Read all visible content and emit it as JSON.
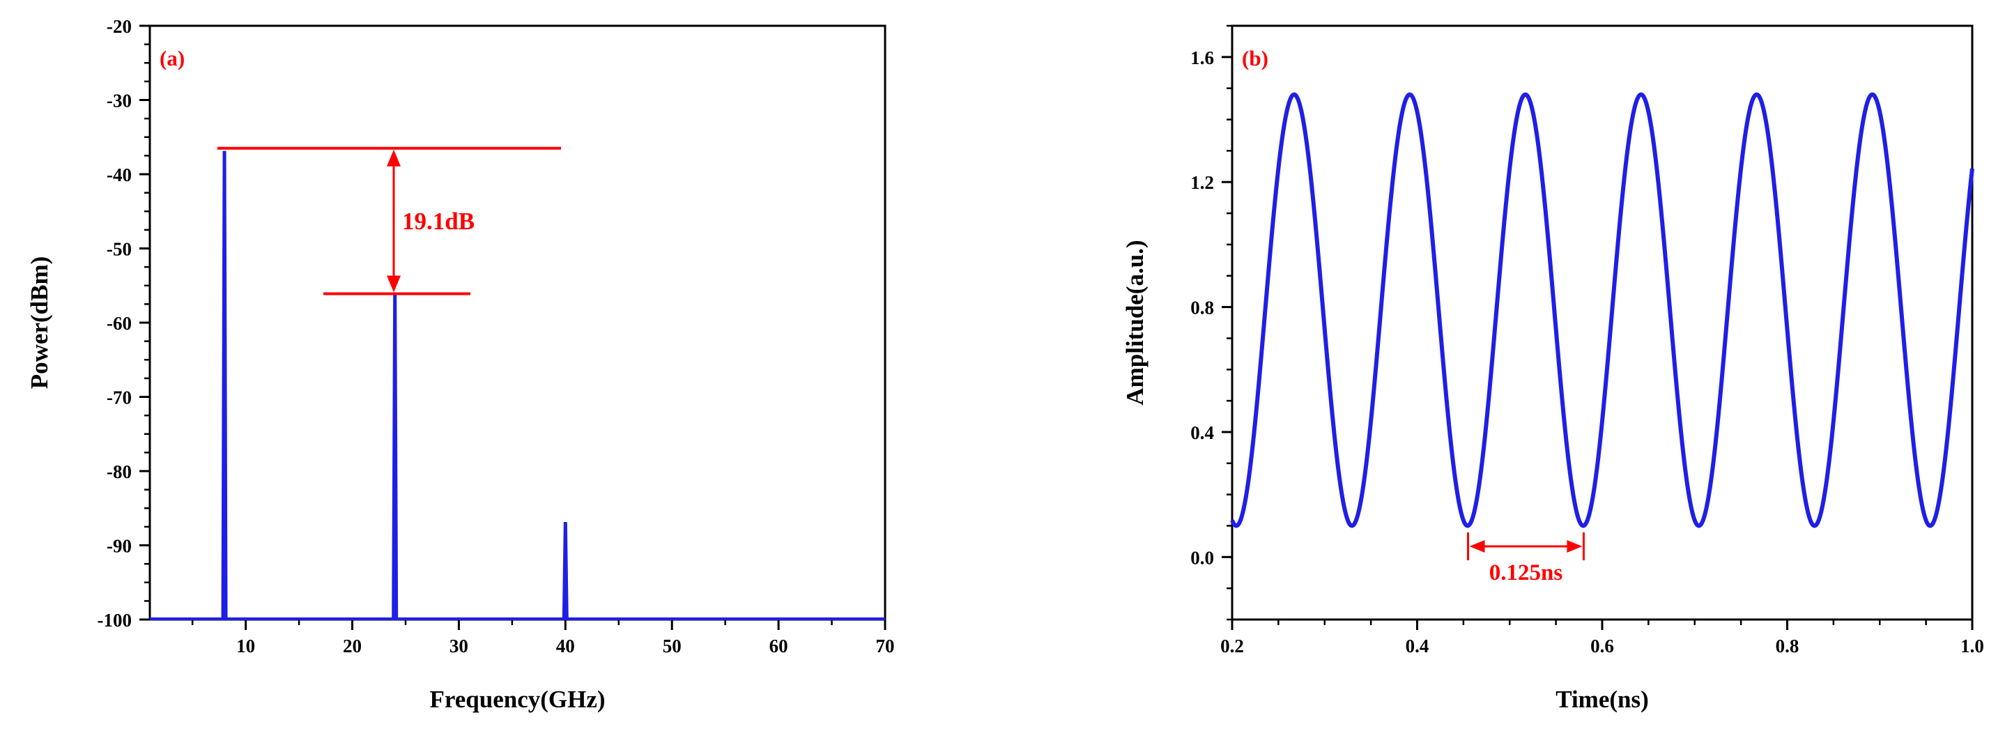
{
  "chart_data": [
    {
      "type": "line",
      "panel_label": "(a)",
      "xlabel": "Frequency(GHz)",
      "ylabel": "Power(dBm)",
      "xlim": [
        1,
        70
      ],
      "ylim": [
        -100,
        -20
      ],
      "xticks": [
        10,
        20,
        30,
        40,
        50,
        60,
        70
      ],
      "yticks": [
        -100,
        -90,
        -80,
        -70,
        -60,
        -50,
        -40,
        -30,
        -20
      ],
      "series": [
        {
          "color": "#1f1fe6",
          "baseline": -100,
          "peaks": [
            {
              "x": 8,
              "y": -37
            },
            {
              "x": 24,
              "y": -56.1
            },
            {
              "x": 40,
              "y": -87
            }
          ]
        }
      ],
      "annotations": [
        {
          "text": "19.1dB",
          "from_y": -36.5,
          "to_y": -56.1,
          "color": "#ff0000"
        }
      ],
      "grid": false
    },
    {
      "type": "line",
      "panel_label": "(b)",
      "xlabel": "Time(ns)",
      "ylabel": "Amplitude(a.u.)",
      "xlim": [
        0.2,
        1.0
      ],
      "ylim": [
        -0.2,
        1.7
      ],
      "xticks": [
        0.2,
        0.4,
        0.6,
        0.8,
        1.0
      ],
      "yticks": [
        0.0,
        0.4,
        0.8,
        1.2,
        1.6
      ],
      "series": [
        {
          "color": "#1f1fe6",
          "period": 0.125,
          "min": 0.1,
          "max": 1.48,
          "peak_at": 0.267
        }
      ],
      "annotations": [
        {
          "text": "0.125ns",
          "from_x": 0.455,
          "to_x": 0.58,
          "color": "#ff0000"
        }
      ],
      "grid": false
    }
  ]
}
